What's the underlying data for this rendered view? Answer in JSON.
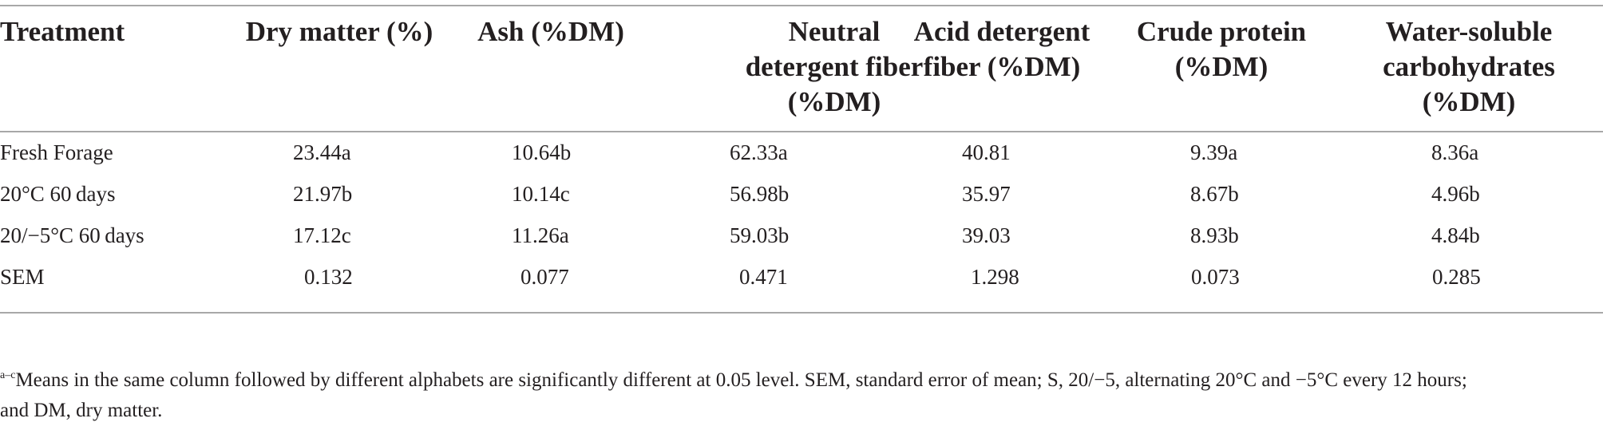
{
  "table": {
    "columns": [
      "Treatment",
      "Dry matter (%)",
      "Ash (%DM)",
      "Neutral detergent fiber (%DM)",
      "Acid detergent fiber (%DM)",
      "Crude protein (%DM)",
      "Water-soluble carbohydrates (%DM)"
    ],
    "header_lines": {
      "treatment": [
        "Treatment"
      ],
      "dry_matter": [
        "Dry matter (%)"
      ],
      "ash": [
        "Ash (%DM)"
      ],
      "ndf": [
        "Neutral",
        "detergent fiber",
        "(%DM)"
      ],
      "adf": [
        "Acid detergent",
        "fiber (%DM)"
      ],
      "cp": [
        "Crude protein",
        "(%DM)"
      ],
      "wsc": [
        "Water-soluble",
        "carbohydrates",
        "(%DM)"
      ]
    },
    "rows": [
      [
        "Fresh Forage",
        "23.44a",
        "10.64b",
        "62.33a",
        "40.81",
        "9.39a",
        "8.36a"
      ],
      [
        "20°C 60 days",
        "21.97b",
        "10.14c",
        "56.98b",
        "35.97",
        "8.67b",
        "4.96b"
      ],
      [
        "20/−5°C 60 days",
        "17.12c",
        "11.26a",
        "59.03b",
        "39.03",
        "8.93b",
        "4.84b"
      ],
      [
        "SEM",
        "0.132",
        "0.077",
        "0.471",
        "1.298",
        "0.073",
        "0.285"
      ]
    ]
  },
  "footnote": {
    "marker": "a–c",
    "text": "Means in the same column followed by different alphabets are significantly different at 0.05 level. SEM, standard error of mean; S, 20/−5, alternating 20°C and −5°C every 12 hours;",
    "text_line2": "and DM, dry matter."
  }
}
